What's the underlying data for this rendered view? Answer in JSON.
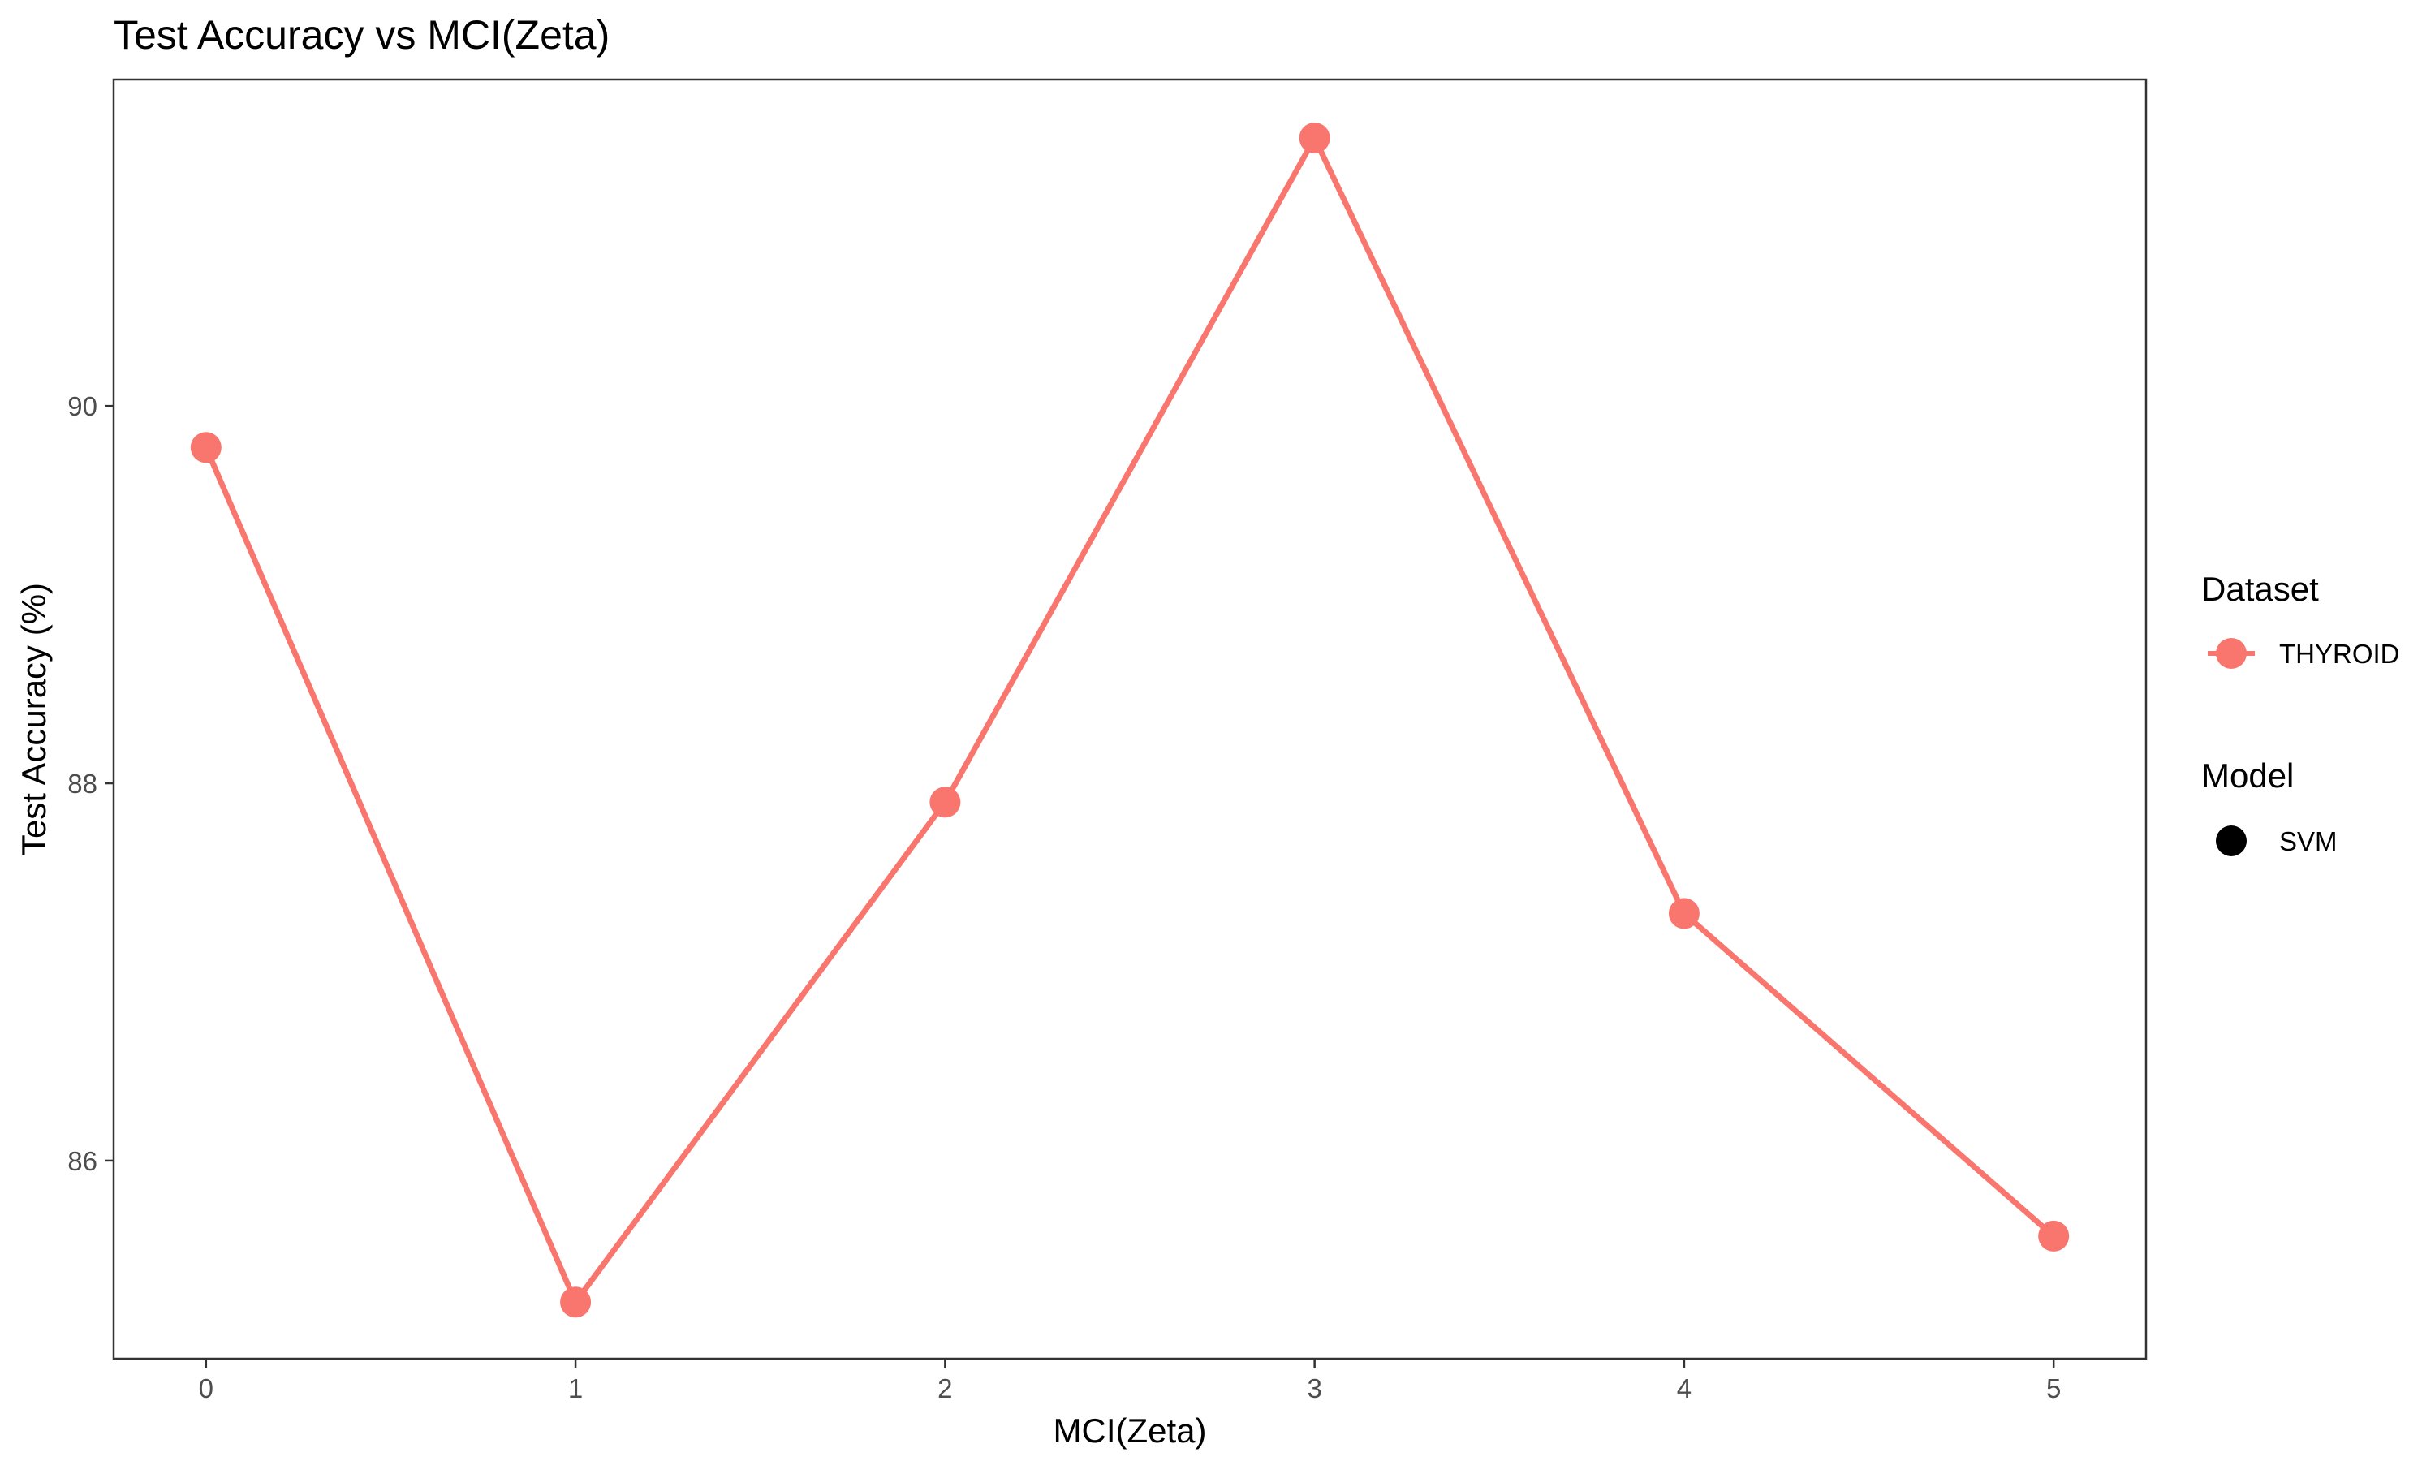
{
  "chart_data": {
    "type": "line",
    "title": "Test Accuracy vs MCI(Zeta)",
    "xlabel": "MCI(Zeta)",
    "ylabel": "Test Accuracy (%)",
    "x": [
      0,
      1,
      2,
      3,
      4,
      5
    ],
    "xticks": [
      "0",
      "1",
      "2",
      "3",
      "4",
      "5"
    ],
    "xlim": [
      -0.25,
      5.25
    ],
    "yticks": [
      "86",
      "88",
      "90"
    ],
    "ylim": [
      84.95,
      91.73
    ],
    "grid": false,
    "series": [
      {
        "name": "THYROID",
        "values": [
          89.78,
          85.25,
          87.9,
          91.42,
          87.31,
          85.6
        ],
        "color": "#F8766D",
        "marker": "circle"
      }
    ],
    "legend": {
      "position": "right",
      "groups": [
        {
          "title": "Dataset",
          "items": [
            {
              "label": "THYROID",
              "color": "#F8766D",
              "symbol": "line-point"
            }
          ]
        },
        {
          "title": "Model",
          "items": [
            {
              "label": "SVM",
              "color": "#000000",
              "symbol": "point"
            }
          ]
        }
      ]
    }
  }
}
